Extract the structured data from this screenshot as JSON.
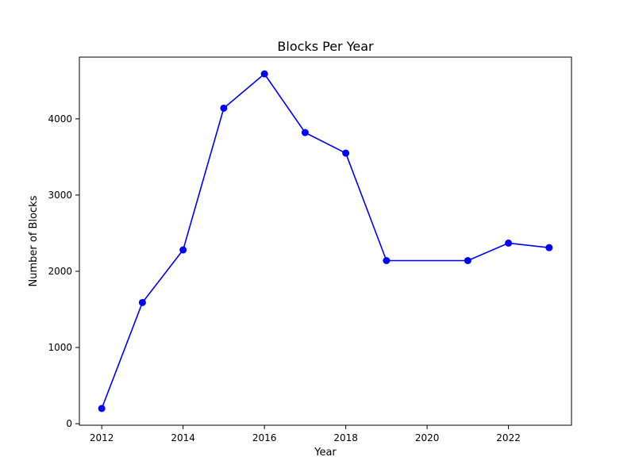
{
  "chart_data": {
    "type": "line",
    "title": "Blocks Per Year",
    "xlabel": "Year",
    "ylabel": "Number of Blocks",
    "x": [
      2012,
      2013,
      2014,
      2015,
      2016,
      2017,
      2018,
      2019,
      2021,
      2022,
      2023
    ],
    "series": [
      {
        "values": [
          200,
          1590,
          2280,
          4140,
          4590,
          3820,
          3550,
          2140,
          2140,
          2370,
          2310
        ],
        "color": "#0000ff",
        "marker": "circle"
      }
    ],
    "xlim": [
      2011.45,
      2023.55
    ],
    "ylim": [
      -20,
      4810
    ],
    "xticks": [
      2012,
      2014,
      2016,
      2018,
      2020,
      2022
    ],
    "yticks": [
      0,
      1000,
      2000,
      3000,
      4000
    ],
    "grid": false,
    "legend": false
  }
}
